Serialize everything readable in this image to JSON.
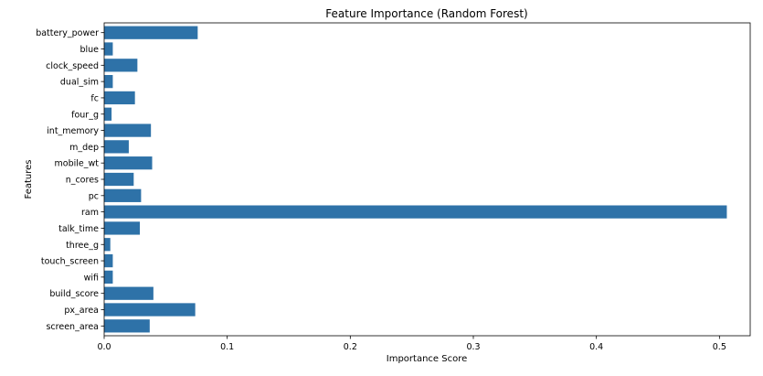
{
  "chart_data": {
    "type": "bar",
    "orientation": "horizontal",
    "title": "Feature Importance (Random Forest)",
    "xlabel": "Importance Score",
    "ylabel": "Features",
    "xlim": [
      0,
      0.525
    ],
    "xticks": [
      0.0,
      0.1,
      0.2,
      0.3,
      0.4,
      0.5
    ],
    "xtick_labels": [
      "0.0",
      "0.1",
      "0.2",
      "0.3",
      "0.4",
      "0.5"
    ],
    "categories": [
      "battery_power",
      "blue",
      "clock_speed",
      "dual_sim",
      "fc",
      "four_g",
      "int_memory",
      "m_dep",
      "mobile_wt",
      "n_cores",
      "pc",
      "ram",
      "talk_time",
      "three_g",
      "touch_screen",
      "wifi",
      "build_score",
      "px_area",
      "screen_area"
    ],
    "values": [
      0.076,
      0.007,
      0.027,
      0.007,
      0.025,
      0.006,
      0.038,
      0.02,
      0.039,
      0.024,
      0.03,
      0.506,
      0.029,
      0.005,
      0.007,
      0.007,
      0.04,
      0.074,
      0.037
    ],
    "bar_color": "#2e72a8",
    "grid": false,
    "legend": "none"
  }
}
